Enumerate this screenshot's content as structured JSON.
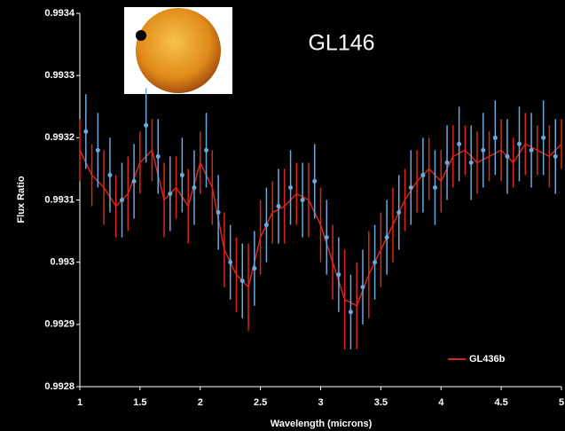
{
  "chart_data": {
    "type": "errorbar",
    "annotation": "GL146",
    "xlabel": "Wavelength (microns)",
    "ylabel": "Flux Ratio",
    "xlim": [
      1,
      5
    ],
    "xticks": [
      1,
      1.5,
      2,
      2.5,
      3,
      3.5,
      4,
      4.5,
      5
    ],
    "ylim": [
      0.9928,
      0.9934
    ],
    "yticks": [
      0.9934,
      0.9933,
      0.9932,
      0.9931,
      0.993,
      0.9929,
      0.9928
    ],
    "legend": "lower right",
    "series": [
      {
        "name": "GL436b",
        "color": "#d8261b",
        "style": "line",
        "x": [
          1.0,
          1.1,
          1.2,
          1.3,
          1.4,
          1.5,
          1.6,
          1.7,
          1.8,
          1.9,
          2.0,
          2.1,
          2.2,
          2.3,
          2.4,
          2.5,
          2.6,
          2.7,
          2.8,
          2.9,
          3.0,
          3.1,
          3.2,
          3.3,
          3.4,
          3.5,
          3.6,
          3.7,
          3.8,
          3.9,
          4.0,
          4.1,
          4.2,
          4.3,
          4.4,
          4.5,
          4.6,
          4.7,
          4.8,
          4.9,
          5.0
        ],
        "values": [
          0.99318,
          0.99314,
          0.99312,
          0.99309,
          0.99311,
          0.99316,
          0.99318,
          0.9931,
          0.99312,
          0.99309,
          0.99316,
          0.99312,
          0.99302,
          0.99298,
          0.99296,
          0.99304,
          0.99308,
          0.99309,
          0.99311,
          0.9931,
          0.99306,
          0.993,
          0.99294,
          0.99293,
          0.99298,
          0.99302,
          0.99306,
          0.9931,
          0.99313,
          0.99315,
          0.99313,
          0.99317,
          0.99318,
          0.99316,
          0.99317,
          0.99318,
          0.99316,
          0.99319,
          0.99318,
          0.99317,
          0.99319
        ],
        "errors": [
          5e-05,
          5e-05,
          6e-05,
          5e-05,
          6e-05,
          5e-05,
          5e-05,
          6e-05,
          5e-05,
          6e-05,
          5e-05,
          6e-05,
          6e-05,
          6e-05,
          7e-05,
          6e-05,
          5e-05,
          6e-05,
          5e-05,
          6e-05,
          6e-05,
          6e-05,
          8e-05,
          7e-05,
          7e-05,
          6e-05,
          6e-05,
          5e-05,
          5e-05,
          5e-05,
          5e-05,
          5e-05,
          4e-05,
          5e-05,
          4e-05,
          5e-05,
          4e-05,
          5e-05,
          4e-05,
          5e-05,
          4e-05
        ]
      },
      {
        "color": "#6fa8dc",
        "style": "points",
        "x": [
          1.05,
          1.15,
          1.25,
          1.35,
          1.45,
          1.55,
          1.65,
          1.75,
          1.85,
          1.95,
          2.05,
          2.15,
          2.25,
          2.35,
          2.45,
          2.55,
          2.65,
          2.75,
          2.85,
          2.95,
          3.05,
          3.15,
          3.25,
          3.35,
          3.45,
          3.55,
          3.65,
          3.75,
          3.85,
          3.95,
          4.05,
          4.15,
          4.25,
          4.35,
          4.45,
          4.55,
          4.65,
          4.75,
          4.85,
          4.95
        ],
        "values": [
          0.99321,
          0.99318,
          0.99314,
          0.9931,
          0.99313,
          0.99322,
          0.99317,
          0.99311,
          0.99314,
          0.99312,
          0.99318,
          0.99308,
          0.993,
          0.99297,
          0.99299,
          0.99306,
          0.99309,
          0.99312,
          0.9931,
          0.99313,
          0.99304,
          0.99298,
          0.99292,
          0.99296,
          0.993,
          0.99304,
          0.99308,
          0.99312,
          0.99314,
          0.99312,
          0.99316,
          0.99319,
          0.99316,
          0.99318,
          0.9932,
          0.99317,
          0.99319,
          0.99318,
          0.9932,
          0.99317
        ],
        "errors": [
          6e-05,
          6e-05,
          6e-05,
          6e-05,
          6e-05,
          6e-05,
          6e-05,
          6e-05,
          6e-05,
          6e-05,
          6e-05,
          6e-05,
          6e-05,
          6e-05,
          6e-05,
          6e-05,
          6e-05,
          6e-05,
          6e-05,
          6e-05,
          6e-05,
          6e-05,
          6e-05,
          6e-05,
          6e-05,
          6e-05,
          6e-05,
          6e-05,
          6e-05,
          6e-05,
          6e-05,
          6e-05,
          6e-05,
          6e-05,
          6e-05,
          6e-05,
          6e-05,
          6e-05,
          6e-05,
          6e-05
        ]
      }
    ]
  }
}
